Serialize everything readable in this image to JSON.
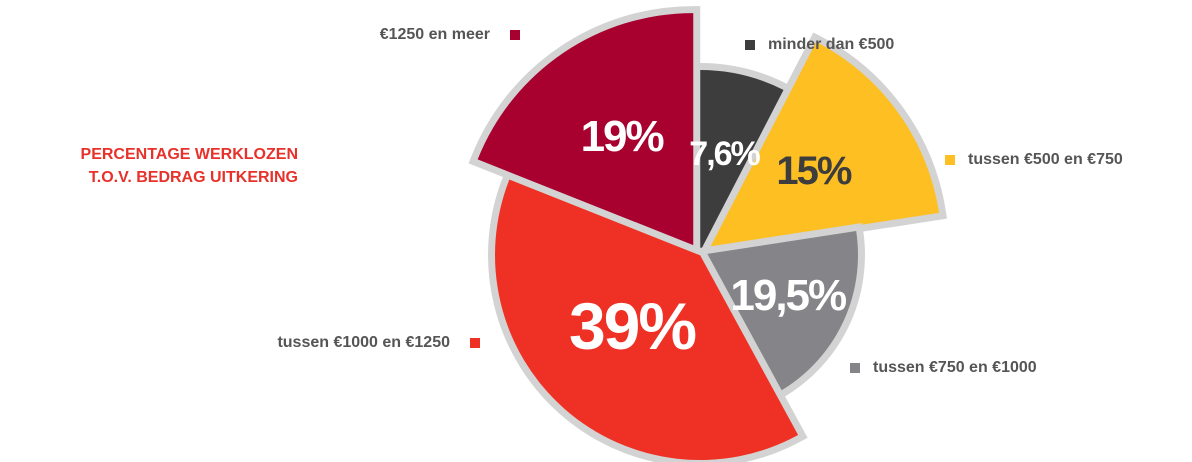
{
  "chart_data": {
    "type": "pie",
    "title": [
      "PERCENTAGE WERKLOZEN",
      "T.O.V. BEDRAG UITKERING"
    ],
    "categories": [
      "minder dan €500",
      "tussen €500 en €750",
      "tussen €750 en €1000",
      "tussen €1000 en €1250",
      "€1250 en meer"
    ],
    "values": [
      7.6,
      15,
      19.5,
      39,
      19
    ],
    "value_labels": [
      "7,6%",
      "15%",
      "19,5%",
      "39%",
      "19%"
    ],
    "colors": [
      "#3d3d3d",
      "#fdbf22",
      "#858589",
      "#ee3124",
      "#a8002f"
    ]
  }
}
